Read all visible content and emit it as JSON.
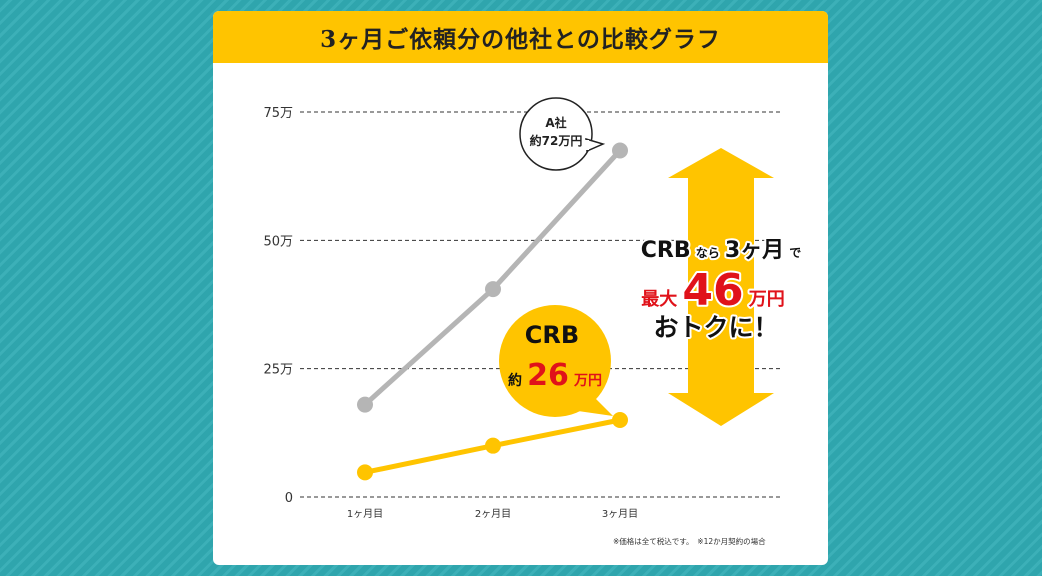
{
  "title": "3ヶ月ご依頼分の他社との比較グラフ",
  "footnote": "※価格は全て税込です。　※12か月契約の場合",
  "colors": {
    "background": "#2fa5ad",
    "title_bar": "#ffc400",
    "series_a": "#b5b5b5",
    "series_crb": "#ffc400",
    "highlight_red": "#e0121a"
  },
  "chart_data": {
    "type": "line",
    "title": "3ヶ月ご依頼分の他社との比較グラフ",
    "x": [
      "1ヶ月目",
      "2ヶ月目",
      "3ヶ月目"
    ],
    "y_ticks": [
      "0",
      "25万",
      "50万",
      "75万"
    ],
    "ylim": [
      0,
      75
    ],
    "grid": true,
    "series": [
      {
        "name": "A社",
        "values": [
          18,
          40.5,
          67.5
        ]
      },
      {
        "name": "CRB",
        "values": [
          4.8,
          10,
          15
        ]
      }
    ],
    "callouts": {
      "a_name": "A社",
      "a_total": "約72万円",
      "crb_name": "CRB",
      "crb_prefix": "約",
      "crb_amount": "26",
      "crb_unit": "万円"
    },
    "savings": {
      "line1_a": "CRB",
      "line1_b": "なら",
      "line1_c": "3ヶ月",
      "line1_d": "で",
      "line2_a": "最大",
      "line2_b": "46",
      "line2_c": "万円",
      "line3": "おトクに！"
    }
  }
}
